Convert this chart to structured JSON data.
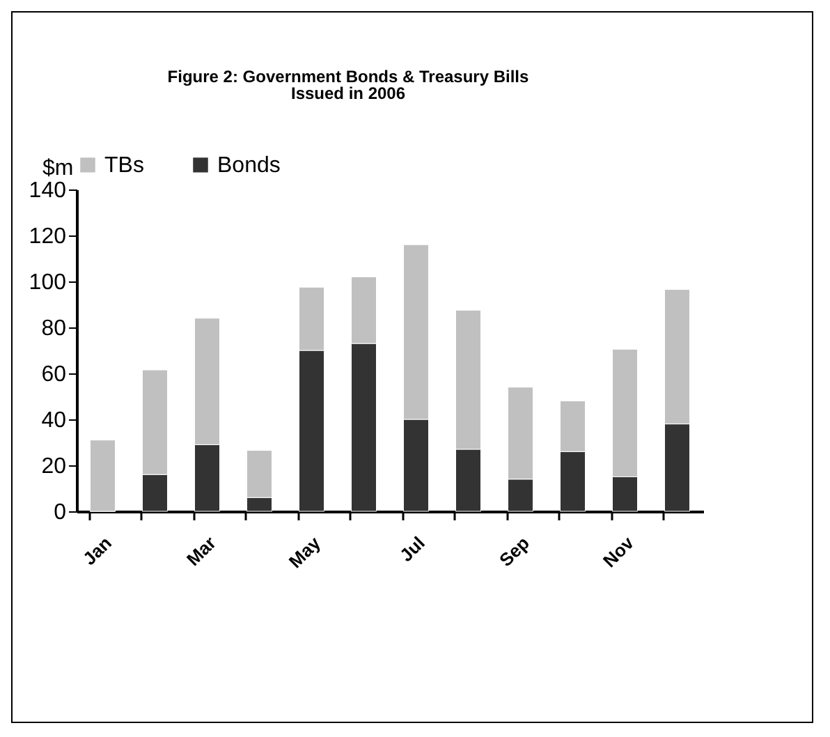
{
  "chart_data": {
    "type": "bar",
    "title": "Figure 2: Government Bonds & Treasury Bills\nIssued  in  2006",
    "ylabel": "$m",
    "categories": [
      "Jan",
      null,
      "Mar",
      null,
      "May",
      null,
      "Jul",
      null,
      "Sep",
      null,
      "Nov",
      null
    ],
    "stacked": true,
    "series": [
      {
        "name": "Bonds",
        "color": "#333333",
        "values": [
          0,
          16,
          29,
          6,
          70,
          73,
          40,
          27,
          14,
          26,
          15,
          38
        ]
      },
      {
        "name": "TBs",
        "color": "#c0c0c0",
        "values": [
          31,
          45.5,
          55,
          20.5,
          27.5,
          29,
          76,
          60.5,
          40,
          22,
          55.5,
          58.5
        ]
      }
    ],
    "ylim": [
      0,
      140
    ],
    "yticks": [
      0,
      20,
      40,
      60,
      80,
      100,
      120,
      140
    ],
    "grid": false,
    "legend": "top"
  }
}
